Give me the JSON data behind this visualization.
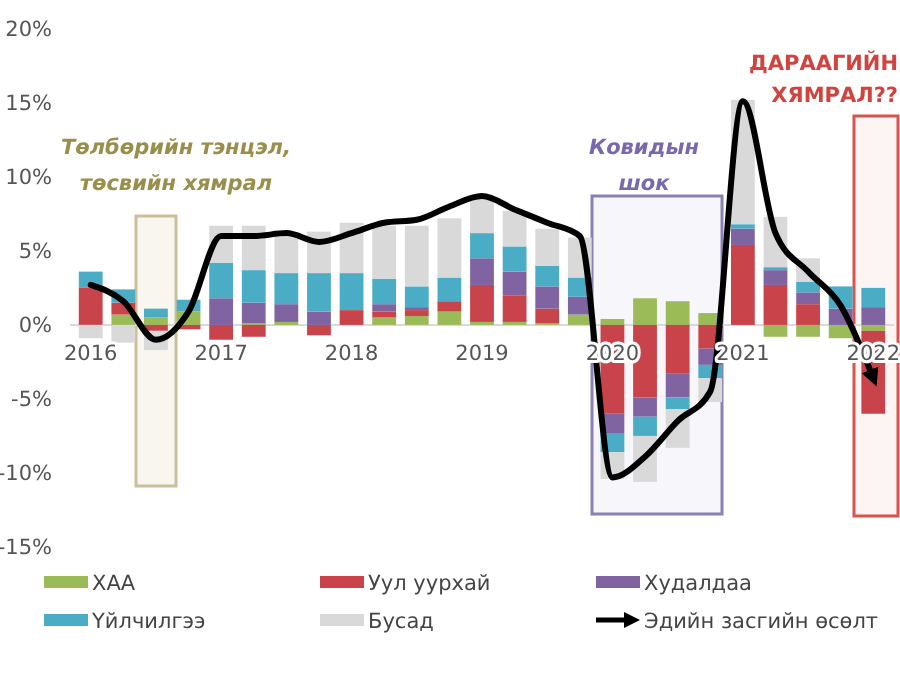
{
  "chart_data": {
    "type": "bar",
    "stacked": true,
    "categories": [
      "2016",
      null,
      null,
      null,
      "2017",
      null,
      null,
      null,
      "2018",
      null,
      null,
      null,
      "2019",
      null,
      null,
      null,
      "2020",
      null,
      null,
      null,
      "2021",
      null,
      null,
      null,
      "2022"
    ],
    "series": [
      {
        "name": "ХАА",
        "color": "#9bbb59",
        "values": [
          0,
          0.7,
          0.5,
          0.9,
          0,
          0.1,
          0.2,
          0,
          0,
          0.5,
          0.6,
          0.9,
          0.2,
          0.2,
          0.1,
          0.7,
          0.4,
          1.8,
          1.6,
          0.8,
          0,
          -0.8,
          -0.8,
          -0.9,
          -0.4
        ]
      },
      {
        "name": "Уул уурхай",
        "color": "#c9444a",
        "values": [
          2.5,
          0.8,
          -0.4,
          -0.3,
          -1.0,
          -0.8,
          0,
          -0.7,
          1.0,
          0.4,
          0.4,
          0.7,
          2.5,
          1.8,
          1.0,
          0,
          -6.0,
          -4.9,
          -3.3,
          -1.6,
          5.4,
          2.7,
          1.4,
          0,
          -5.6
        ]
      },
      {
        "name": "Худалдаа",
        "color": "#8064a2",
        "values": [
          0,
          0,
          0,
          0,
          1.8,
          1.4,
          1.2,
          0.9,
          0,
          0.5,
          0.2,
          0,
          1.8,
          1.6,
          1.5,
          1.2,
          -1.3,
          -1.3,
          -1.6,
          -1.1,
          1.1,
          1.0,
          0.8,
          1.1,
          1.2
        ]
      },
      {
        "name": "Үйлчилгээ",
        "color": "#4bacc6",
        "values": [
          1.1,
          0.9,
          0.6,
          0.8,
          2.4,
          2.2,
          2.1,
          2.6,
          2.5,
          1.7,
          1.4,
          1.6,
          1.7,
          1.7,
          1.4,
          1.3,
          -1.3,
          -1.3,
          -0.8,
          -0.9,
          0.3,
          0.2,
          0.7,
          1.5,
          1.3
        ]
      },
      {
        "name": "Бусад",
        "color": "#d9d9d9",
        "values": [
          -0.9,
          -1.2,
          -1.3,
          0,
          2.5,
          3.0,
          2.7,
          2.8,
          3.4,
          3.6,
          4.1,
          4.0,
          2.3,
          2.4,
          2.5,
          2.7,
          -1.8,
          -3.1,
          -2.6,
          -1.6,
          8.4,
          3.4,
          1.6,
          0,
          0
        ]
      },
      {
        "name": "Эдийн засгийн өсөлт",
        "type": "line",
        "color": "#000000",
        "values": [
          2.7,
          1.6,
          -1.0,
          0.9,
          6.0,
          6.0,
          6.2,
          5.6,
          6.2,
          6.9,
          7.1,
          8.0,
          8.7,
          7.8,
          6.9,
          6.0,
          -10.3,
          -8.9,
          -6.5,
          -4.5,
          15.1,
          6.2,
          3.6,
          1.3,
          -3.6
        ]
      }
    ],
    "ylim": [
      -15,
      20
    ],
    "yticks": [
      {
        "value": -15,
        "label": "-15%"
      },
      {
        "value": -10,
        "label": "-10%"
      },
      {
        "value": -5,
        "label": "-5%"
      },
      {
        "value": 0,
        "label": "0%"
      },
      {
        "value": 5,
        "label": "5%"
      },
      {
        "value": 10,
        "label": "10%"
      },
      {
        "value": 15,
        "label": "15%"
      },
      {
        "value": 20,
        "label": "20%"
      }
    ],
    "legend": "bottom",
    "annotations": [
      "Төлбөрийн тэнцэл,\nтөсвийн хямрал",
      "Ковидын\nшок",
      "ДАРААГИЙН\nХЯМРАЛ??"
    ]
  }
}
